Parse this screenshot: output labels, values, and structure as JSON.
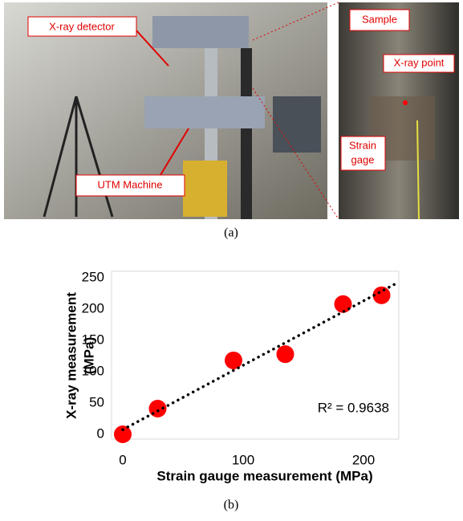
{
  "photo": {
    "labels": {
      "detector": "X-ray detector",
      "utm": "UTM Machine",
      "sample": "Sample",
      "point": "X-ray point",
      "gage": [
        "Strain",
        "gage"
      ]
    },
    "caption": "(a)"
  },
  "chart_data": {
    "type": "scatter",
    "caption": "(b)",
    "xlabel": "Strain gauge measurement (MPa)",
    "ylabel": [
      "X-ray measurement",
      "(MPa)"
    ],
    "series": [
      {
        "color": "#ff0000",
        "x": [
          0,
          29,
          92,
          135,
          183,
          215
        ],
        "values": [
          0,
          41,
          118,
          128,
          208,
          222
        ]
      }
    ],
    "trendline": true,
    "annotation": "R² = 0.9638",
    "xlim": [
      -8,
      228
    ],
    "xticks": [
      0,
      100,
      200
    ],
    "ylim": [
      0,
      250
    ],
    "yticks": [
      0,
      50,
      100,
      150,
      200,
      250
    ]
  }
}
